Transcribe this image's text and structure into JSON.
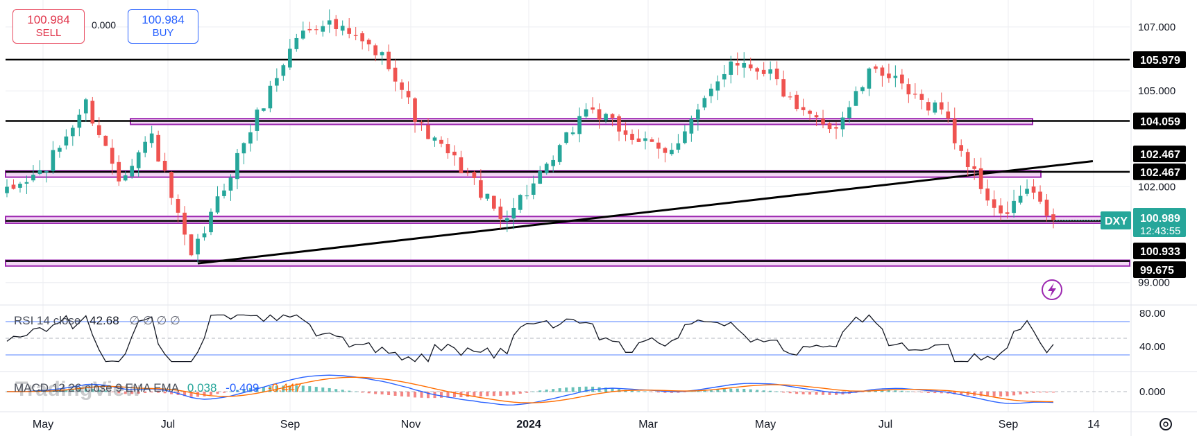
{
  "trade": {
    "sell_price": "100.984",
    "sell_label": "SELL",
    "spread": "0.000",
    "buy_price": "100.984",
    "buy_label": "BUY"
  },
  "watermark": "TradingView",
  "colors": {
    "up": "#26a69a",
    "down": "#ef5350",
    "zone_border": "#9c27b0",
    "zone_fill": "#f3d7f5",
    "current_price": "#26a69a",
    "macd_line": "#2962ff",
    "signal_line": "#ff6d00",
    "rsi_line": "#131722"
  },
  "chart_data": {
    "type": "candlestick",
    "symbol": "DXY",
    "last_price": "100.989",
    "countdown": "12:43:55",
    "x_ticks": [
      "May",
      "Jul",
      "Sep",
      "Nov",
      "2024",
      "Mar",
      "May",
      "Jul",
      "Sep",
      "14"
    ],
    "y_ticks": [
      "107.000",
      "105.000",
      "102.000",
      "99.000"
    ],
    "y_range": [
      98.3,
      107.8
    ],
    "price_path_keypoints": [
      [
        0,
        101.8
      ],
      [
        6,
        102.6
      ],
      [
        12,
        104.6
      ],
      [
        17,
        102.3
      ],
      [
        22,
        103.6
      ],
      [
        28,
        99.7
      ],
      [
        36,
        103.4
      ],
      [
        44,
        106.7
      ],
      [
        48,
        107.2
      ],
      [
        54,
        106.5
      ],
      [
        58,
        105.9
      ],
      [
        63,
        103.8
      ],
      [
        70,
        102.4
      ],
      [
        75,
        101.0
      ],
      [
        82,
        102.5
      ],
      [
        88,
        104.5
      ],
      [
        93,
        103.8
      ],
      [
        100,
        103.0
      ],
      [
        106,
        104.6
      ],
      [
        110,
        106.0
      ],
      [
        116,
        105.6
      ],
      [
        120,
        104.3
      ],
      [
        126,
        103.9
      ],
      [
        132,
        105.8
      ],
      [
        138,
        104.7
      ],
      [
        142,
        104.5
      ],
      [
        144,
        103.5
      ],
      [
        148,
        102.0
      ],
      [
        151,
        101.0
      ],
      [
        155,
        101.9
      ],
      [
        159,
        100.9
      ]
    ],
    "horizontal_lines": [
      "105.979",
      "104.059",
      "102.467",
      "100.933",
      "99.675"
    ],
    "zones": [
      {
        "low": 103.95,
        "high": 104.13
      },
      {
        "low": 102.3,
        "high": 102.5
      },
      {
        "low": 100.86,
        "high": 101.07
      },
      {
        "low": 99.52,
        "high": 99.7
      }
    ],
    "trendline": {
      "from": [
        29,
        99.6
      ],
      "to": [
        165,
        102.8
      ]
    },
    "rsi": {
      "label": "RSI 14 close",
      "value": "42.68",
      "extra": "∅ ∅ ∅ ∅",
      "y_ticks": [
        "80.00",
        "40.00"
      ],
      "range": [
        10,
        90
      ],
      "bands": [
        70,
        30
      ]
    },
    "macd": {
      "label": "MACD 12 26 close 9 EMA EMA",
      "hist": "0.038",
      "macd": "-0.409",
      "signal": "-0.447",
      "y_ticks": [
        "0.000"
      ],
      "range": [
        -1.4,
        1.4
      ]
    }
  }
}
